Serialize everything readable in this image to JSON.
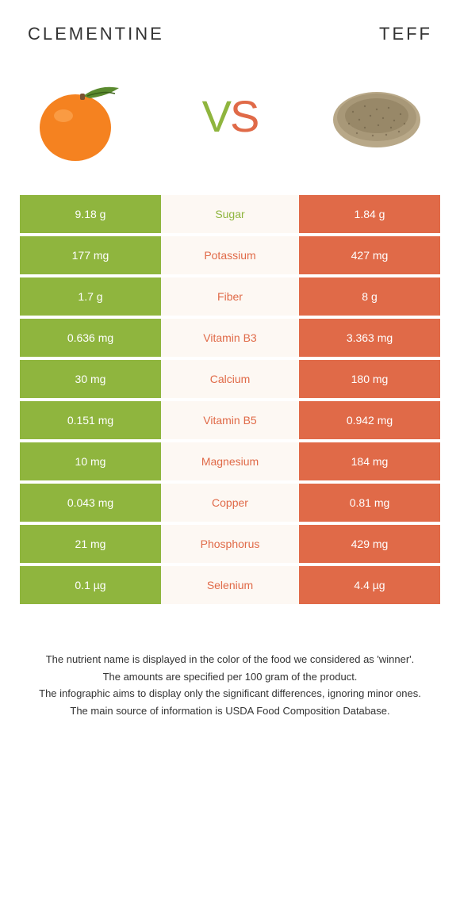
{
  "header": {
    "left": "Clementine",
    "right": "Teff"
  },
  "vs": {
    "v": "V",
    "s": "S"
  },
  "colors": {
    "green": "#8fb53e",
    "orange": "#e06a48",
    "mid_bg": "#fdf8f3"
  },
  "rows": [
    {
      "left": "9.18 g",
      "mid": "Sugar",
      "right": "1.84 g",
      "winner": "green"
    },
    {
      "left": "177 mg",
      "mid": "Potassium",
      "right": "427 mg",
      "winner": "orange"
    },
    {
      "left": "1.7 g",
      "mid": "Fiber",
      "right": "8 g",
      "winner": "orange"
    },
    {
      "left": "0.636 mg",
      "mid": "Vitamin B3",
      "right": "3.363 mg",
      "winner": "orange"
    },
    {
      "left": "30 mg",
      "mid": "Calcium",
      "right": "180 mg",
      "winner": "orange"
    },
    {
      "left": "0.151 mg",
      "mid": "Vitamin B5",
      "right": "0.942 mg",
      "winner": "orange"
    },
    {
      "left": "10 mg",
      "mid": "Magnesium",
      "right": "184 mg",
      "winner": "orange"
    },
    {
      "left": "0.043 mg",
      "mid": "Copper",
      "right": "0.81 mg",
      "winner": "orange"
    },
    {
      "left": "21 mg",
      "mid": "Phosphorus",
      "right": "429 mg",
      "winner": "orange"
    },
    {
      "left": "0.1 µg",
      "mid": "Selenium",
      "right": "4.4 µg",
      "winner": "orange"
    }
  ],
  "footer": {
    "line1": "The nutrient name is displayed in the color of the food we considered as 'winner'.",
    "line2": "The amounts are specified per 100 gram of the product.",
    "line3": "The infographic aims to display only the significant differences, ignoring minor ones.",
    "line4": "The main source of information is USDA Food Composition Database."
  }
}
